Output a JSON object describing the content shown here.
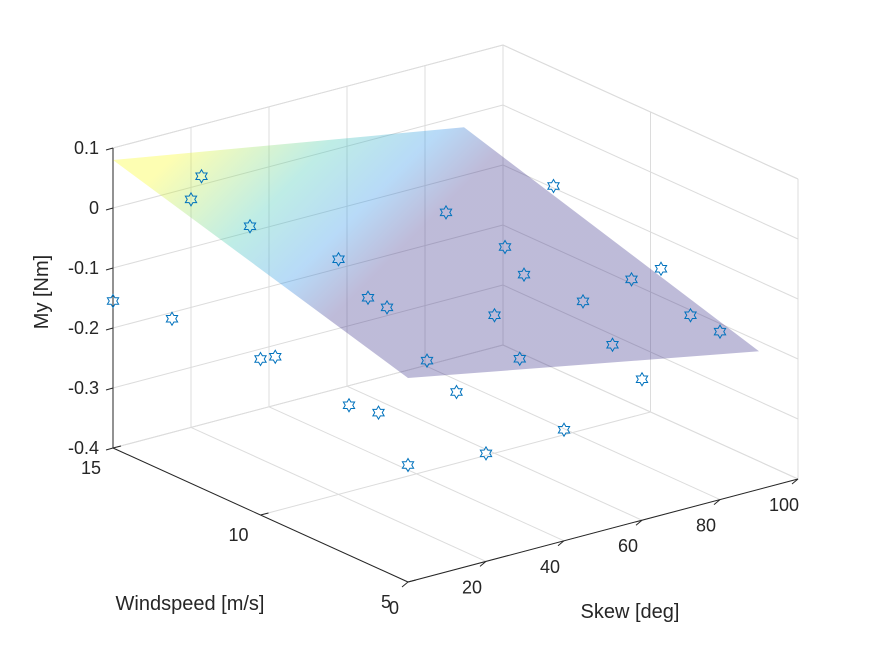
{
  "chart_data": {
    "type": "scatter",
    "projection": "3d",
    "xlabel": "Skew [deg]",
    "ylabel": "Windspeed [m/s]",
    "zlabel": "My [Nm]",
    "xlim": [
      0,
      100
    ],
    "ylim": [
      5,
      15
    ],
    "zlim": [
      -0.4,
      0.1
    ],
    "xticks": [
      "0",
      "20",
      "40",
      "60",
      "80",
      "100"
    ],
    "yticks": [
      "5",
      "10",
      "15"
    ],
    "zticks": [
      "-0.4",
      "-0.3",
      "-0.2",
      "-0.1",
      "0",
      "0.1"
    ],
    "grid": true,
    "marker": "hexagram",
    "marker_color": "#0072BD",
    "surface": {
      "type": "plane",
      "colormap": "parula",
      "face_alpha": 0.3,
      "x": [
        0,
        90
      ],
      "y": [
        5,
        15
      ],
      "z": [
        [
          -0.06,
          -0.17
        ],
        [
          0.08,
          -0.02
        ]
      ]
    },
    "points": [
      {
        "x": 0,
        "y": 15,
        "z": -0.155
      },
      {
        "x": 0,
        "y": 13,
        "z": -0.14
      },
      {
        "x": 0,
        "y": 10,
        "z": -0.14
      },
      {
        "x": 0,
        "y": 9.5,
        "z": -0.125
      },
      {
        "x": 0,
        "y": 7,
        "z": -0.15
      },
      {
        "x": 0,
        "y": 6,
        "z": -0.14
      },
      {
        "x": 0,
        "y": 5,
        "z": -0.205
      },
      {
        "x": 0,
        "y": 12,
        "z": 0.12
      },
      {
        "x": 20,
        "y": 15,
        "z": -0.02
      },
      {
        "x": 20,
        "y": 13,
        "z": -0.02
      },
      {
        "x": 20,
        "y": 10,
        "z": -0.008
      },
      {
        "x": 20,
        "y": 9,
        "z": -0.05
      },
      {
        "x": 20,
        "y": 7,
        "z": -0.11
      },
      {
        "x": 20,
        "y": 6,
        "z": -0.14
      },
      {
        "x": 20,
        "y": 5,
        "z": -0.22
      },
      {
        "x": 40,
        "y": 9,
        "z": 0.058
      },
      {
        "x": 40,
        "y": 7,
        "z": 0.045
      },
      {
        "x": 40,
        "y": 11,
        "z": -0.145
      },
      {
        "x": 40,
        "y": 5,
        "z": -0.215
      },
      {
        "x": 40,
        "y": 6.5,
        "z": -0.13
      },
      {
        "x": 60,
        "y": 8,
        "z": 0.09
      },
      {
        "x": 60,
        "y": 9,
        "z": -0.08
      },
      {
        "x": 60,
        "y": 7,
        "z": -0.08
      },
      {
        "x": 60,
        "y": 6,
        "z": -0.13
      },
      {
        "x": 60,
        "y": 5,
        "z": -0.165
      },
      {
        "x": 60,
        "y": 10,
        "z": -0.17
      },
      {
        "x": 80,
        "y": 7,
        "z": -0.06
      },
      {
        "x": 80,
        "y": 8,
        "z": -0.1
      },
      {
        "x": 80,
        "y": 6,
        "z": -0.115
      },
      {
        "x": 80,
        "y": 5,
        "z": -0.12
      }
    ]
  }
}
